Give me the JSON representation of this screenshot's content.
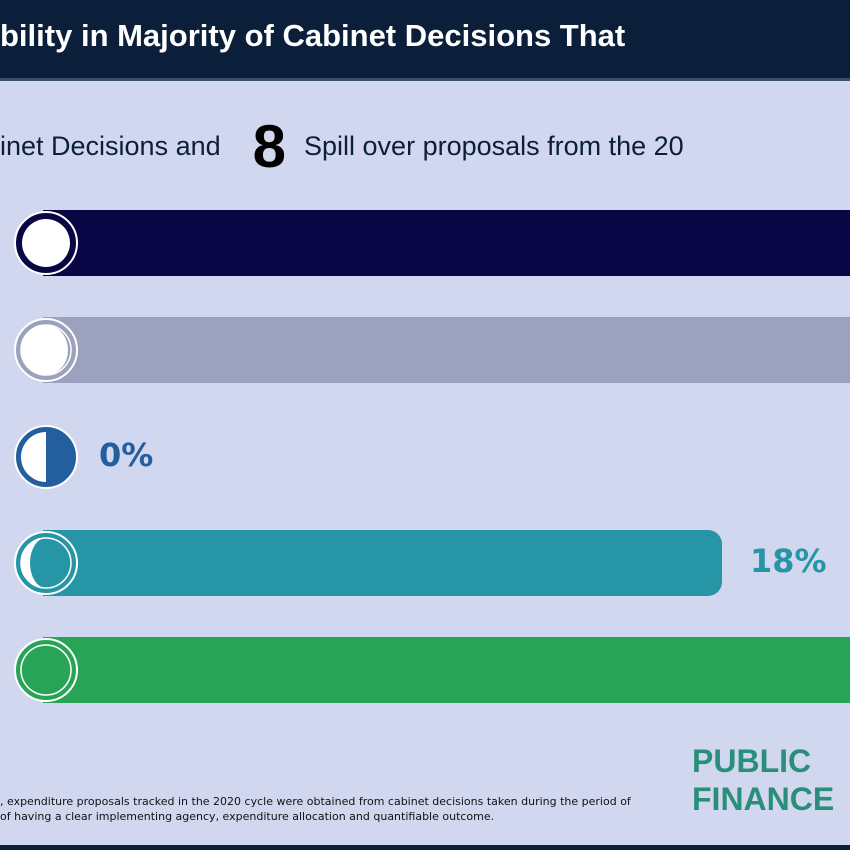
{
  "header": {
    "title": "bility in Majority of Cabinet Decisions That"
  },
  "subtitle": {
    "left": "inet Decisions and",
    "number": "8",
    "right": "Spill over proposals from the 20"
  },
  "chart_data": {
    "type": "bar",
    "orientation": "horizontal",
    "categories": [
      "row1",
      "row2",
      "row3",
      "row4",
      "row5"
    ],
    "values": [
      100,
      100,
      0,
      18,
      100
    ],
    "labels": [
      "",
      "",
      "0%",
      "18%",
      ""
    ],
    "colors": [
      "#0a0645",
      "#9ca2bd",
      "#235f9e",
      "#2695a5",
      "#28a456"
    ],
    "xlim": [
      0,
      100
    ]
  },
  "footer": {
    "line1": ", expenditure proposals tracked in the 2020 cycle  were obtained from cabinet decisions taken during the period of",
    "line2": "of having a clear implementing agency, expenditure allocation and quantifiable outcome."
  },
  "logo": {
    "line1": "PUBLIC",
    "line2": "FINANCE"
  }
}
